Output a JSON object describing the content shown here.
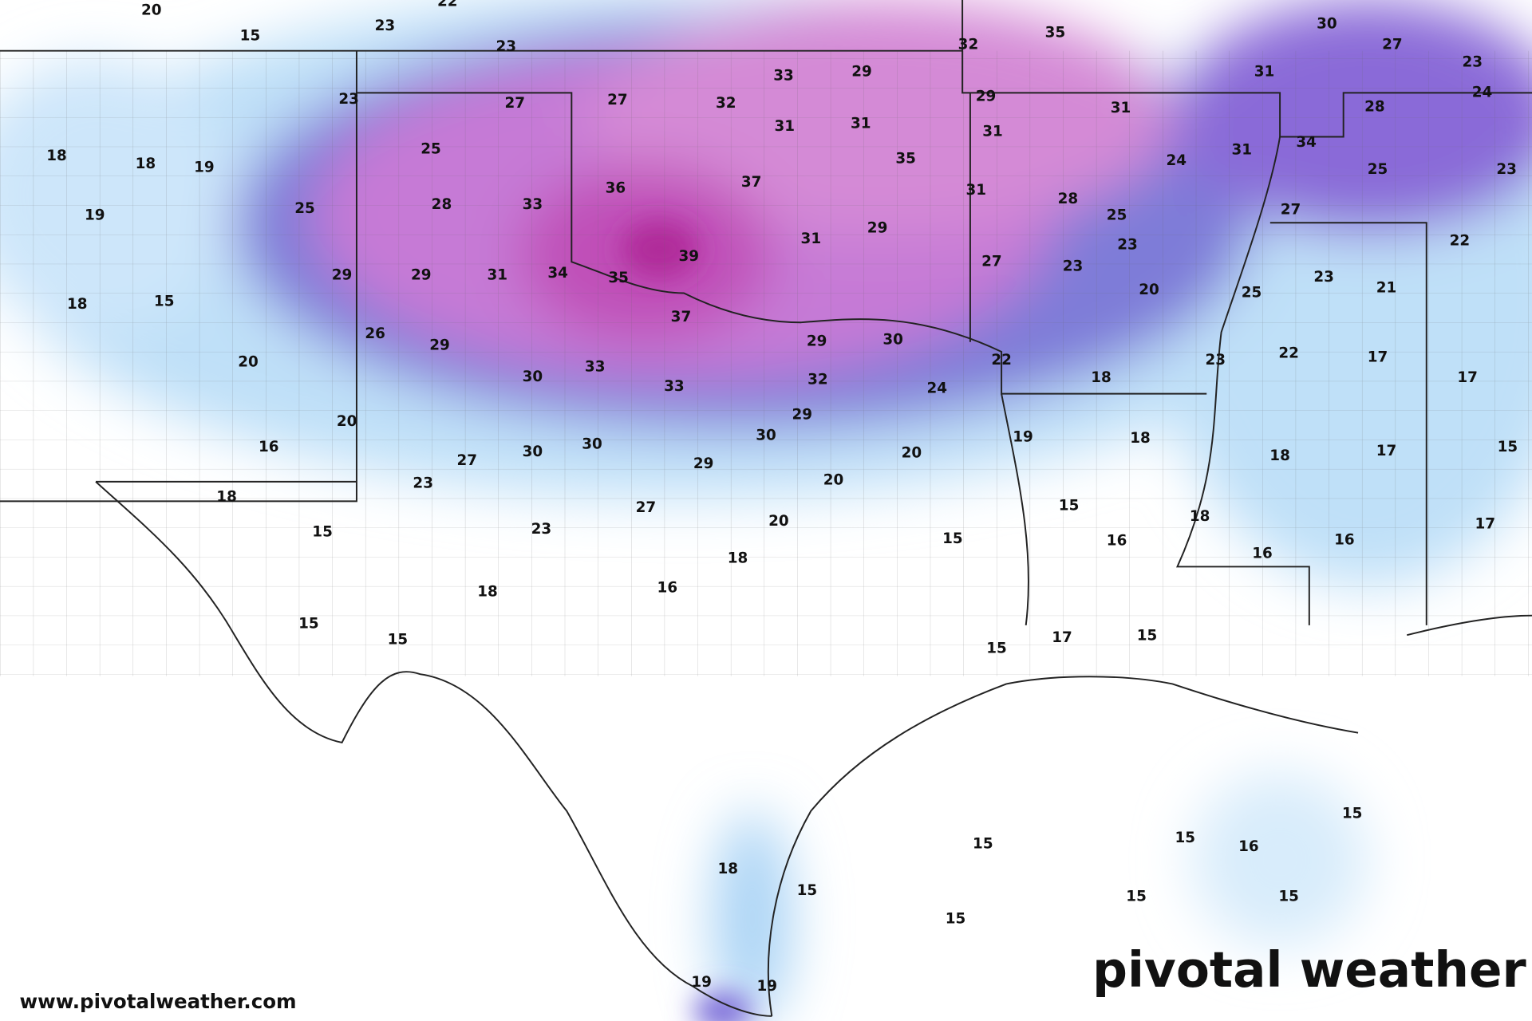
{
  "map": {
    "labels": [
      20,
      15,
      23,
      22,
      23,
      35,
      32,
      30,
      27,
      23,
      24,
      31,
      23,
      27,
      27,
      32,
      33,
      29,
      29,
      31,
      28,
      18,
      18,
      19,
      25,
      31,
      31,
      31,
      31,
      34,
      35,
      24,
      25,
      23,
      19,
      25,
      28,
      33,
      36,
      37,
      31,
      28,
      25,
      27,
      23,
      31,
      29,
      22,
      29,
      29,
      31,
      34,
      35,
      39,
      27,
      23,
      20,
      25,
      23,
      21,
      18,
      15,
      37,
      26,
      29,
      29,
      30,
      22,
      23,
      22,
      17,
      17,
      20,
      30,
      33,
      33,
      32,
      24,
      18,
      20,
      16,
      29,
      30,
      19,
      18,
      18,
      17,
      15,
      27,
      30,
      30,
      29,
      20,
      23,
      18,
      20,
      27,
      15,
      20,
      23,
      15,
      16,
      18,
      15,
      16,
      17,
      16,
      18,
      18,
      16,
      15,
      15,
      17,
      15,
      15,
      15,
      15,
      15,
      16,
      18,
      15,
      15,
      15,
      15,
      19,
      19
    ]
  },
  "footer": {
    "url": "www.pivotalweather.com",
    "brand": "pivotal weather"
  }
}
